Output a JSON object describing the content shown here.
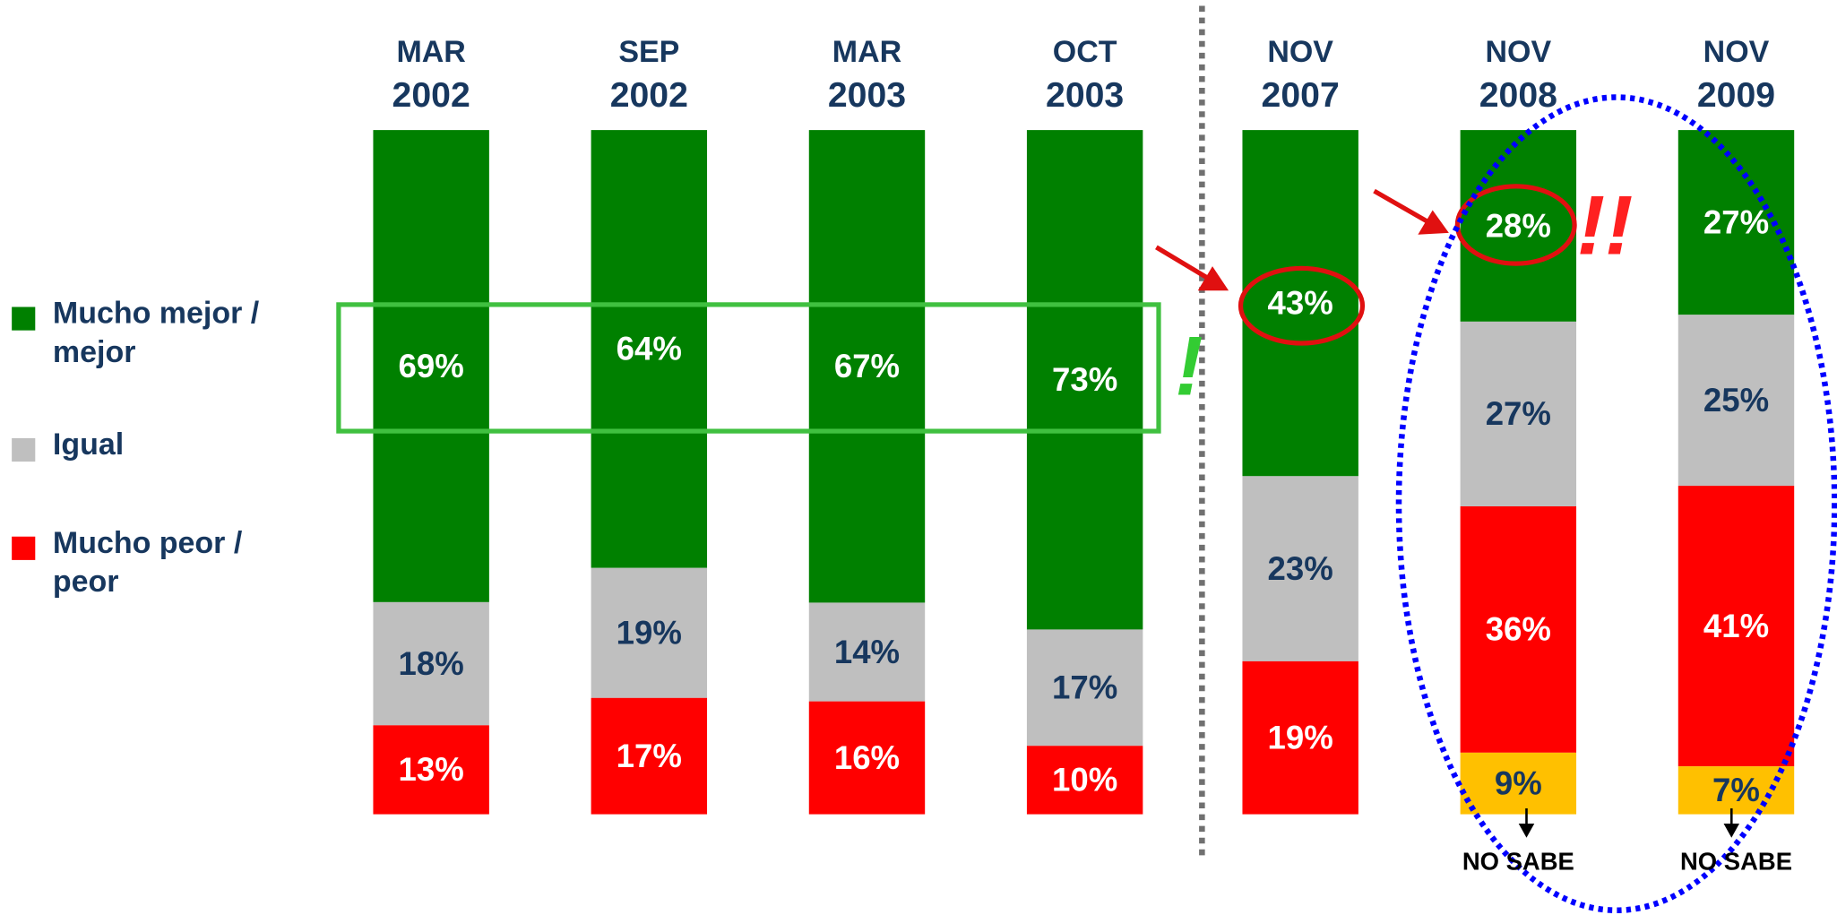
{
  "chart_data": {
    "type": "stacked_bar",
    "categories": [
      [
        "MAR",
        "2002"
      ],
      [
        "SEP",
        "2002"
      ],
      [
        "MAR",
        "2003"
      ],
      [
        "OCT",
        "2003"
      ],
      [
        "NOV",
        "2007"
      ],
      [
        "NOV",
        "2008"
      ],
      [
        "NOV",
        "2009"
      ]
    ],
    "series": [
      {
        "name": "Mucho mejor / mejor",
        "color": "#008000",
        "label_color": "#ffffff",
        "values": [
          69,
          64,
          67,
          73,
          43,
          28,
          27
        ],
        "value_labels": [
          "69%",
          "64%",
          "67%",
          "73%",
          "43%",
          "28%",
          "27%"
        ]
      },
      {
        "name": "Igual",
        "color": "#bfbfbf",
        "label_color": "#17375e",
        "values": [
          18,
          19,
          14,
          17,
          23,
          27,
          25
        ],
        "value_labels": [
          "18%",
          "19%",
          "14%",
          "17%",
          "23%",
          "27%",
          "25%"
        ]
      },
      {
        "name": "Mucho peor / peor",
        "color": "#ff0000",
        "label_color": "#ffffff",
        "values": [
          13,
          17,
          16,
          10,
          19,
          36,
          41
        ],
        "value_labels": [
          "13%",
          "17%",
          "16%",
          "10%",
          "19%",
          "36%",
          "41%"
        ]
      },
      {
        "name": "NO SABE",
        "color": "#ffc000",
        "label_color": "#17375e",
        "values": [
          null,
          null,
          null,
          null,
          null,
          9,
          7
        ],
        "value_labels": [
          null,
          null,
          null,
          null,
          null,
          "9%",
          "7%"
        ]
      }
    ],
    "legend": "left",
    "annotations": [
      "!",
      "!!"
    ]
  }
}
